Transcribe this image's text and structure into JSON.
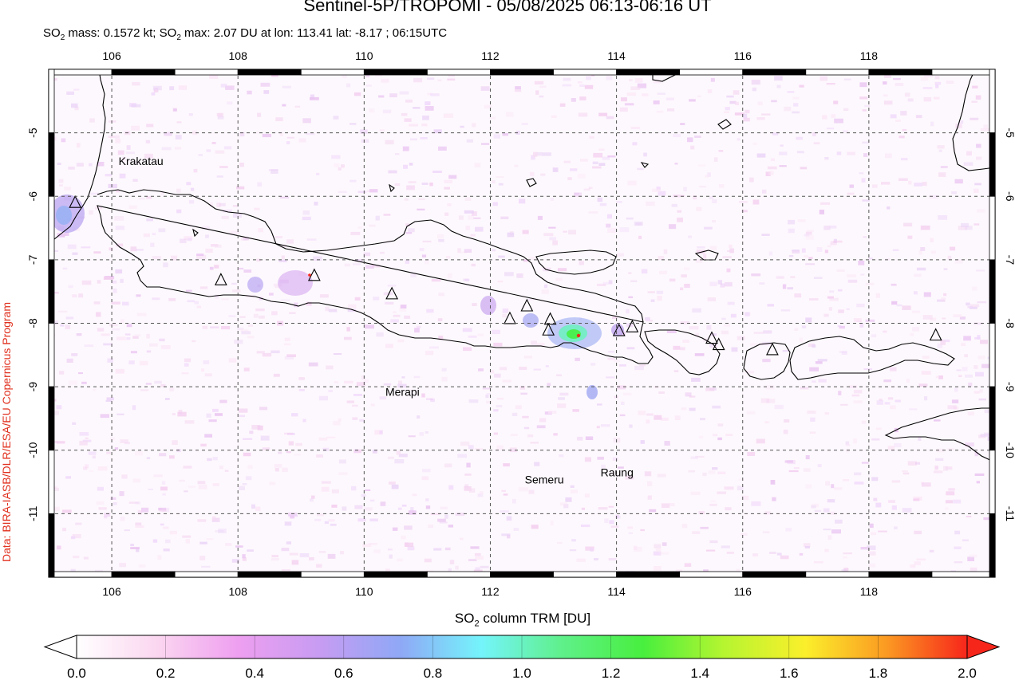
{
  "header": {
    "title": "Sentinel-5P/TROPOMI - 05/08/2025 06:13-06:16 UT",
    "sub_a": "SO",
    "sub_a_2": "2",
    "sub_b": " mass: 0.1572 kt; SO",
    "sub_b_2": "2",
    "sub_c": " max: 2.07 DU at lon: 113.41 lat: -8.17 ; 06:15UTC"
  },
  "credit": "Data: BIRA-IASB/DLR/ESA/EU Copernicus Program",
  "map": {
    "lon_range": [
      105,
      120
    ],
    "lat_range": [
      -12.0,
      -4.0
    ],
    "lon_ticks": [
      106,
      108,
      110,
      112,
      114,
      116,
      118
    ],
    "lon_tick_labels": [
      "106",
      "108",
      "110",
      "112",
      "114",
      "116",
      "118"
    ],
    "lat_ticks": [
      -5,
      -6,
      -7,
      -8,
      -9,
      -10,
      -11
    ],
    "lat_tick_labels": [
      "-5",
      "-6",
      "-7",
      "-8",
      "-9",
      "-10",
      "-11"
    ],
    "grid": "dashed",
    "volcano_labels": [
      {
        "name": "Krakatau",
        "lon": 105.4,
        "lat": -6.1
      },
      {
        "name": "Merapi",
        "lon": 110.4,
        "lat": -7.5
      },
      {
        "name": "Semeru",
        "lon": 112.9,
        "lat": -8.1
      },
      {
        "name": "Raung",
        "lon": 114.0,
        "lat": -8.1
      }
    ],
    "volcanoes": [
      {
        "lon": 105.42,
        "lat": -6.1
      },
      {
        "lon": 107.73,
        "lat": -7.32
      },
      {
        "lon": 109.21,
        "lat": -7.25
      },
      {
        "lon": 110.44,
        "lat": -7.54
      },
      {
        "lon": 112.31,
        "lat": -7.93
      },
      {
        "lon": 112.58,
        "lat": -7.73
      },
      {
        "lon": 112.95,
        "lat": -7.94
      },
      {
        "lon": 112.92,
        "lat": -8.11
      },
      {
        "lon": 114.04,
        "lat": -8.12
      },
      {
        "lon": 114.25,
        "lat": -8.06
      },
      {
        "lon": 115.51,
        "lat": -8.24
      },
      {
        "lon": 115.62,
        "lat": -8.34
      },
      {
        "lon": 116.47,
        "lat": -8.42
      },
      {
        "lon": 119.06,
        "lat": -8.19
      }
    ],
    "so2_max_point": {
      "lon": 113.41,
      "lat": -8.17,
      "value": 2.07
    }
  },
  "colorbar": {
    "title_a": "SO",
    "title_a_2": "2",
    "title_b": " column TRM [DU]",
    "min": 0.0,
    "max": 2.0,
    "tick_values": [
      0.0,
      0.2,
      0.4,
      0.6,
      0.8,
      1.0,
      1.2,
      1.4,
      1.6,
      1.8,
      2.0
    ],
    "tick_labels": [
      "0.0",
      "0.2",
      "0.4",
      "0.6",
      "0.8",
      "1.0",
      "1.2",
      "1.4",
      "1.6",
      "1.8",
      "2.0"
    ],
    "colors": [
      "#ffffff",
      "#fbd6f0",
      "#ee9ff0",
      "#c79cf2",
      "#8fa8f6",
      "#74f4fb",
      "#5ff08a",
      "#48ef3e",
      "#b6f530",
      "#fbef2b",
      "#fb9a22",
      "#f7261b"
    ]
  }
}
